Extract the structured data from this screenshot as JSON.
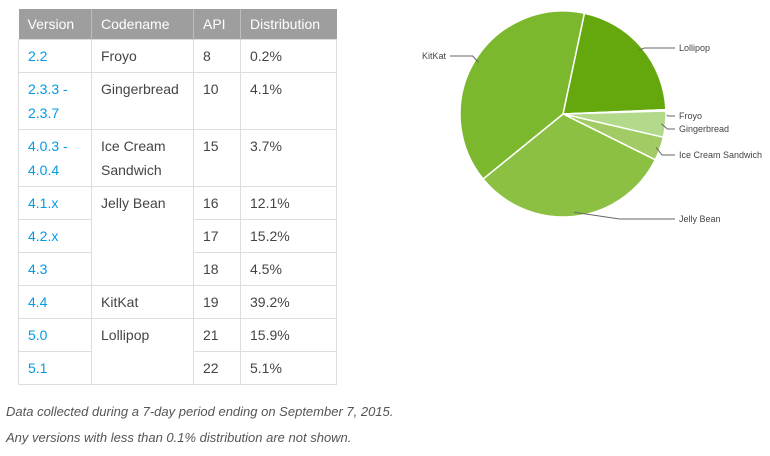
{
  "table": {
    "headers": [
      "Version",
      "Codename",
      "API",
      "Distribution"
    ],
    "rows": [
      {
        "version": "2.2",
        "codename": "Froyo",
        "api": "8",
        "distribution": "0.2%"
      },
      {
        "version": "2.3.3 - 2.3.7",
        "codename": "Gingerbread",
        "api": "10",
        "distribution": "4.1%"
      },
      {
        "version": "4.0.3 - 4.0.4",
        "codename": "Ice Cream Sandwich",
        "api": "15",
        "distribution": "3.7%"
      },
      {
        "version": "4.1.x",
        "codename": "Jelly Bean",
        "api": "16",
        "distribution": "12.1%"
      },
      {
        "version": "4.2.x",
        "codename": "",
        "api": "17",
        "distribution": "15.2%"
      },
      {
        "version": "4.3",
        "codename": "",
        "api": "18",
        "distribution": "4.5%"
      },
      {
        "version": "4.4",
        "codename": "KitKat",
        "api": "19",
        "distribution": "39.2%"
      },
      {
        "version": "5.0",
        "codename": "Lollipop",
        "api": "21",
        "distribution": "15.9%"
      },
      {
        "version": "5.1",
        "codename": "",
        "api": "22",
        "distribution": "5.1%"
      }
    ]
  },
  "footnotes": [
    "Data collected during a 7-day period ending on September 7, 2015.",
    "Any versions with less than 0.1% distribution are not shown."
  ],
  "chart_data": {
    "type": "pie",
    "slices": [
      {
        "label": "Lollipop",
        "value": 21.0,
        "color": "#64a80d"
      },
      {
        "label": "Froyo",
        "value": 0.2,
        "color": "#c9e3a8"
      },
      {
        "label": "Gingerbread",
        "value": 4.1,
        "color": "#b3d98a"
      },
      {
        "label": "Ice Cream Sandwich",
        "value": 3.7,
        "color": "#a1cc63"
      },
      {
        "label": "Jelly Bean",
        "value": 31.8,
        "color": "#8cc043"
      },
      {
        "label": "KitKat",
        "value": 39.2,
        "color": "#7cb82e"
      }
    ],
    "start_angle_deg": 12,
    "legend": "leader-line labels"
  }
}
